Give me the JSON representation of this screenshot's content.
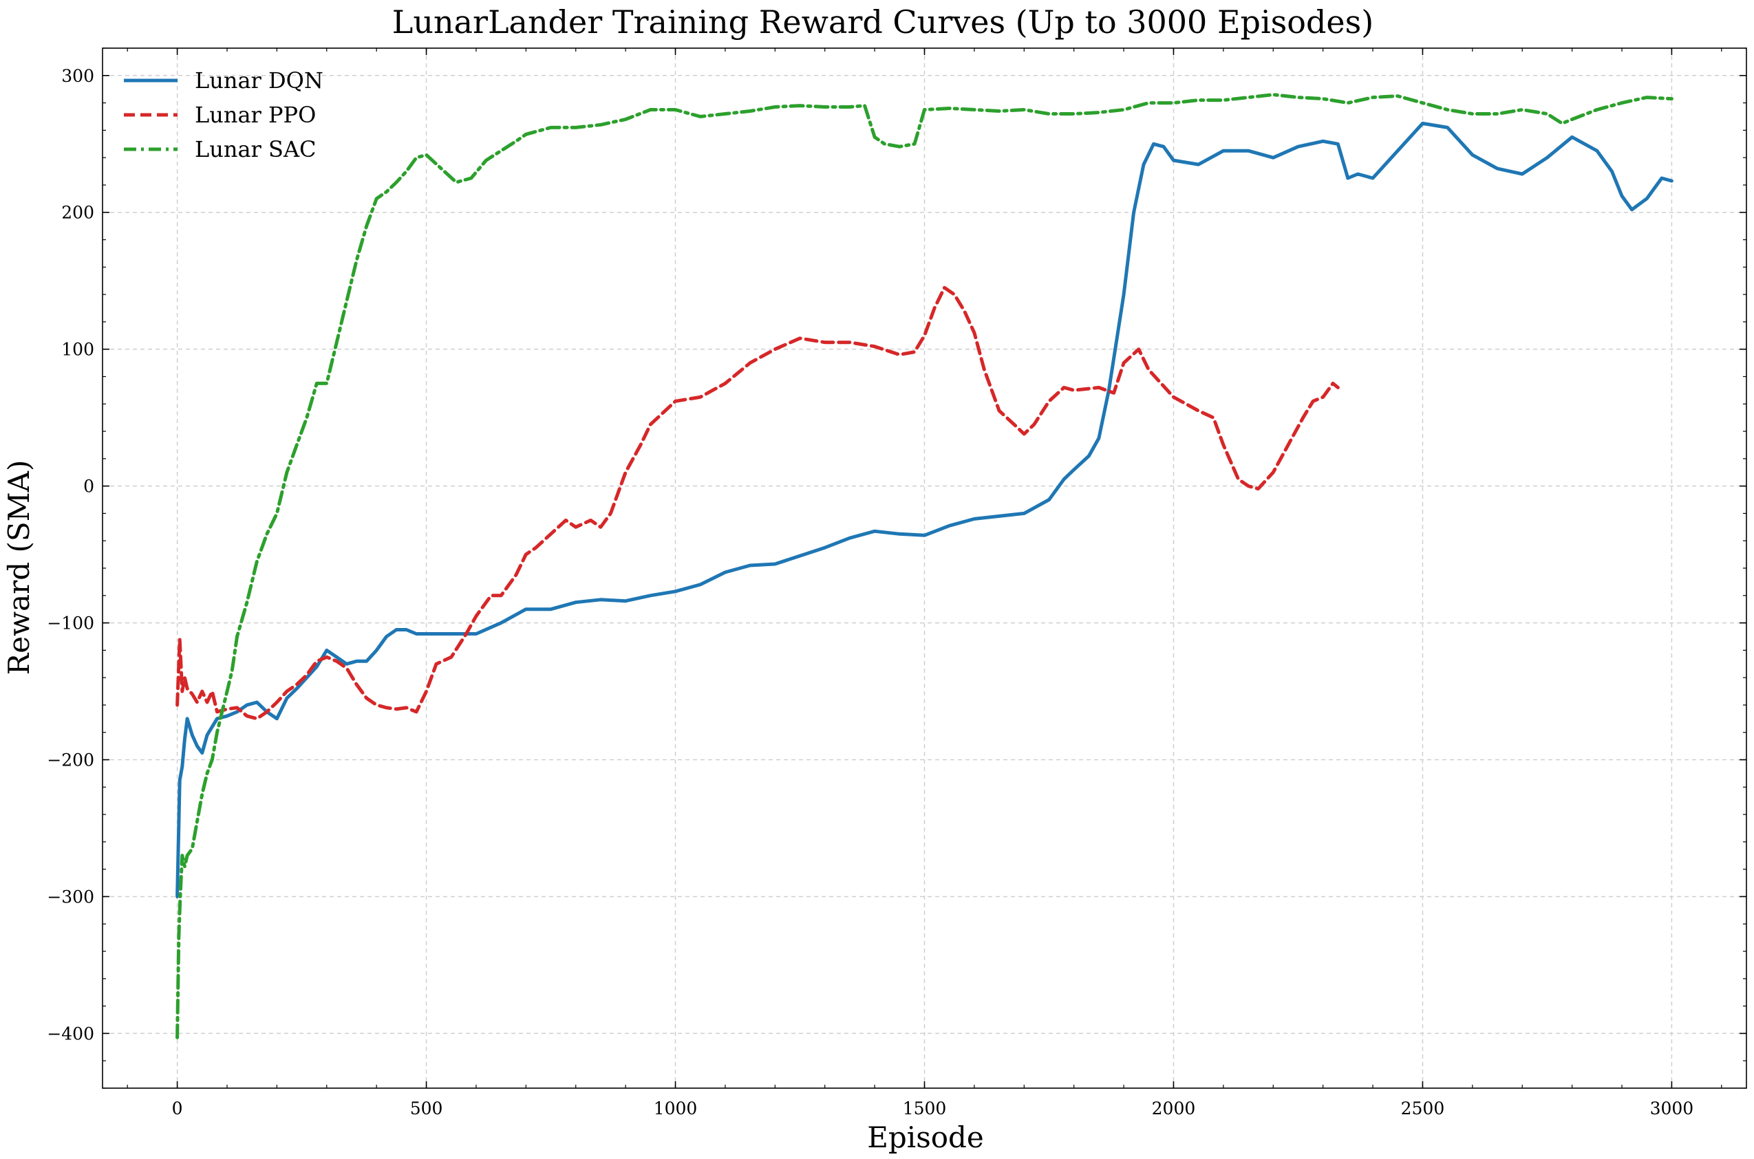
{
  "chart_data": {
    "type": "line",
    "title": "LunarLander Training Reward Curves (Up to 3000 Episodes)",
    "xlabel": "Episode",
    "ylabel": "Reward (SMA)",
    "xlim": [
      -150,
      3150
    ],
    "ylim": [
      -440,
      320
    ],
    "xticks": [
      0,
      500,
      1000,
      1500,
      2000,
      2500,
      3000
    ],
    "yticks": [
      -400,
      -300,
      -200,
      -100,
      0,
      100,
      200,
      300
    ],
    "grid": true,
    "legend_position": "upper-left",
    "series": [
      {
        "name": "Lunar DQN",
        "color": "#1f77b4",
        "dash": "solid",
        "x": [
          0,
          5,
          10,
          15,
          20,
          30,
          40,
          50,
          60,
          80,
          100,
          120,
          140,
          160,
          180,
          200,
          220,
          240,
          260,
          280,
          300,
          320,
          340,
          360,
          380,
          400,
          420,
          440,
          460,
          480,
          500,
          550,
          600,
          650,
          700,
          750,
          800,
          850,
          900,
          950,
          1000,
          1050,
          1100,
          1150,
          1200,
          1250,
          1300,
          1350,
          1400,
          1450,
          1500,
          1550,
          1600,
          1650,
          1700,
          1750,
          1780,
          1800,
          1830,
          1850,
          1870,
          1900,
          1920,
          1940,
          1960,
          1980,
          2000,
          2050,
          2100,
          2150,
          2200,
          2250,
          2300,
          2330,
          2350,
          2370,
          2400,
          2450,
          2500,
          2550,
          2600,
          2650,
          2700,
          2750,
          2800,
          2850,
          2880,
          2900,
          2920,
          2950,
          2980,
          3000
        ],
        "y": [
          -300,
          -215,
          -205,
          -185,
          -170,
          -182,
          -190,
          -195,
          -182,
          -170,
          -168,
          -165,
          -160,
          -158,
          -165,
          -170,
          -155,
          -148,
          -140,
          -132,
          -120,
          -125,
          -130,
          -128,
          -128,
          -120,
          -110,
          -105,
          -105,
          -108,
          -108,
          -108,
          -108,
          -100,
          -90,
          -90,
          -85,
          -83,
          -84,
          -80,
          -77,
          -72,
          -63,
          -58,
          -57,
          -51,
          -45,
          -38,
          -33,
          -35,
          -36,
          -29,
          -24,
          -22,
          -20,
          -10,
          5,
          12,
          22,
          35,
          70,
          140,
          200,
          235,
          250,
          248,
          238,
          235,
          245,
          245,
          240,
          248,
          252,
          250,
          225,
          228,
          225,
          245,
          265,
          262,
          242,
          232,
          228,
          240,
          255,
          245,
          230,
          212,
          202,
          210,
          225,
          223
        ]
      },
      {
        "name": "Lunar PPO",
        "color": "#d62728",
        "dash": "dashed",
        "x": [
          0,
          5,
          10,
          15,
          20,
          30,
          40,
          50,
          60,
          70,
          80,
          100,
          120,
          140,
          160,
          180,
          200,
          220,
          240,
          260,
          280,
          300,
          320,
          340,
          360,
          380,
          400,
          420,
          440,
          460,
          480,
          500,
          520,
          550,
          580,
          600,
          630,
          650,
          680,
          700,
          720,
          750,
          780,
          800,
          830,
          850,
          870,
          900,
          930,
          950,
          1000,
          1050,
          1100,
          1150,
          1200,
          1250,
          1300,
          1350,
          1400,
          1450,
          1480,
          1500,
          1520,
          1540,
          1560,
          1580,
          1600,
          1620,
          1650,
          1680,
          1700,
          1720,
          1750,
          1780,
          1800,
          1850,
          1880,
          1900,
          1930,
          1950,
          2000,
          2050,
          2080,
          2100,
          2130,
          2150,
          2170,
          2200,
          2230,
          2260,
          2280,
          2300,
          2320,
          2330
        ],
        "y": [
          -160,
          -112,
          -150,
          -140,
          -148,
          -152,
          -158,
          -150,
          -158,
          -150,
          -165,
          -163,
          -162,
          -168,
          -170,
          -165,
          -158,
          -150,
          -145,
          -138,
          -128,
          -125,
          -128,
          -133,
          -145,
          -155,
          -160,
          -162,
          -163,
          -162,
          -165,
          -150,
          -130,
          -125,
          -108,
          -95,
          -80,
          -80,
          -65,
          -50,
          -45,
          -35,
          -25,
          -30,
          -25,
          -30,
          -20,
          10,
          30,
          45,
          62,
          65,
          75,
          90,
          100,
          108,
          105,
          105,
          102,
          96,
          98,
          110,
          130,
          145,
          140,
          128,
          112,
          85,
          55,
          45,
          38,
          45,
          62,
          72,
          70,
          72,
          68,
          90,
          100,
          85,
          65,
          55,
          50,
          30,
          5,
          0,
          -2,
          10,
          30,
          50,
          62,
          65,
          75,
          72
        ]
      },
      {
        "name": "Lunar SAC",
        "color": "#2ca02c",
        "dash": "dashdot",
        "x": [
          0,
          3,
          6,
          10,
          15,
          20,
          30,
          40,
          50,
          60,
          70,
          80,
          90,
          100,
          110,
          120,
          140,
          160,
          180,
          200,
          220,
          240,
          260,
          280,
          300,
          320,
          340,
          360,
          380,
          400,
          420,
          440,
          460,
          480,
          500,
          530,
          560,
          590,
          620,
          650,
          680,
          700,
          750,
          800,
          850,
          900,
          950,
          1000,
          1050,
          1100,
          1150,
          1200,
          1250,
          1300,
          1350,
          1380,
          1400,
          1420,
          1450,
          1480,
          1500,
          1550,
          1600,
          1650,
          1700,
          1750,
          1800,
          1850,
          1900,
          1950,
          2000,
          2050,
          2100,
          2150,
          2200,
          2250,
          2300,
          2350,
          2400,
          2450,
          2500,
          2550,
          2600,
          2650,
          2700,
          2750,
          2780,
          2800,
          2850,
          2900,
          2950,
          3000
        ],
        "y": [
          -403,
          -330,
          -300,
          -270,
          -278,
          -270,
          -265,
          -245,
          -225,
          -210,
          -200,
          -180,
          -165,
          -150,
          -135,
          -110,
          -85,
          -55,
          -35,
          -20,
          10,
          30,
          50,
          75,
          75,
          105,
          135,
          165,
          190,
          210,
          215,
          222,
          230,
          240,
          242,
          232,
          222,
          225,
          238,
          245,
          252,
          257,
          262,
          262,
          264,
          268,
          275,
          275,
          270,
          272,
          274,
          277,
          278,
          277,
          277,
          278,
          255,
          250,
          248,
          250,
          275,
          276,
          275,
          274,
          275,
          272,
          272,
          273,
          275,
          280,
          280,
          282,
          282,
          284,
          286,
          284,
          283,
          280,
          284,
          285,
          280,
          275,
          272,
          272,
          275,
          272,
          265,
          268,
          275,
          280,
          284,
          283
        ]
      }
    ]
  }
}
